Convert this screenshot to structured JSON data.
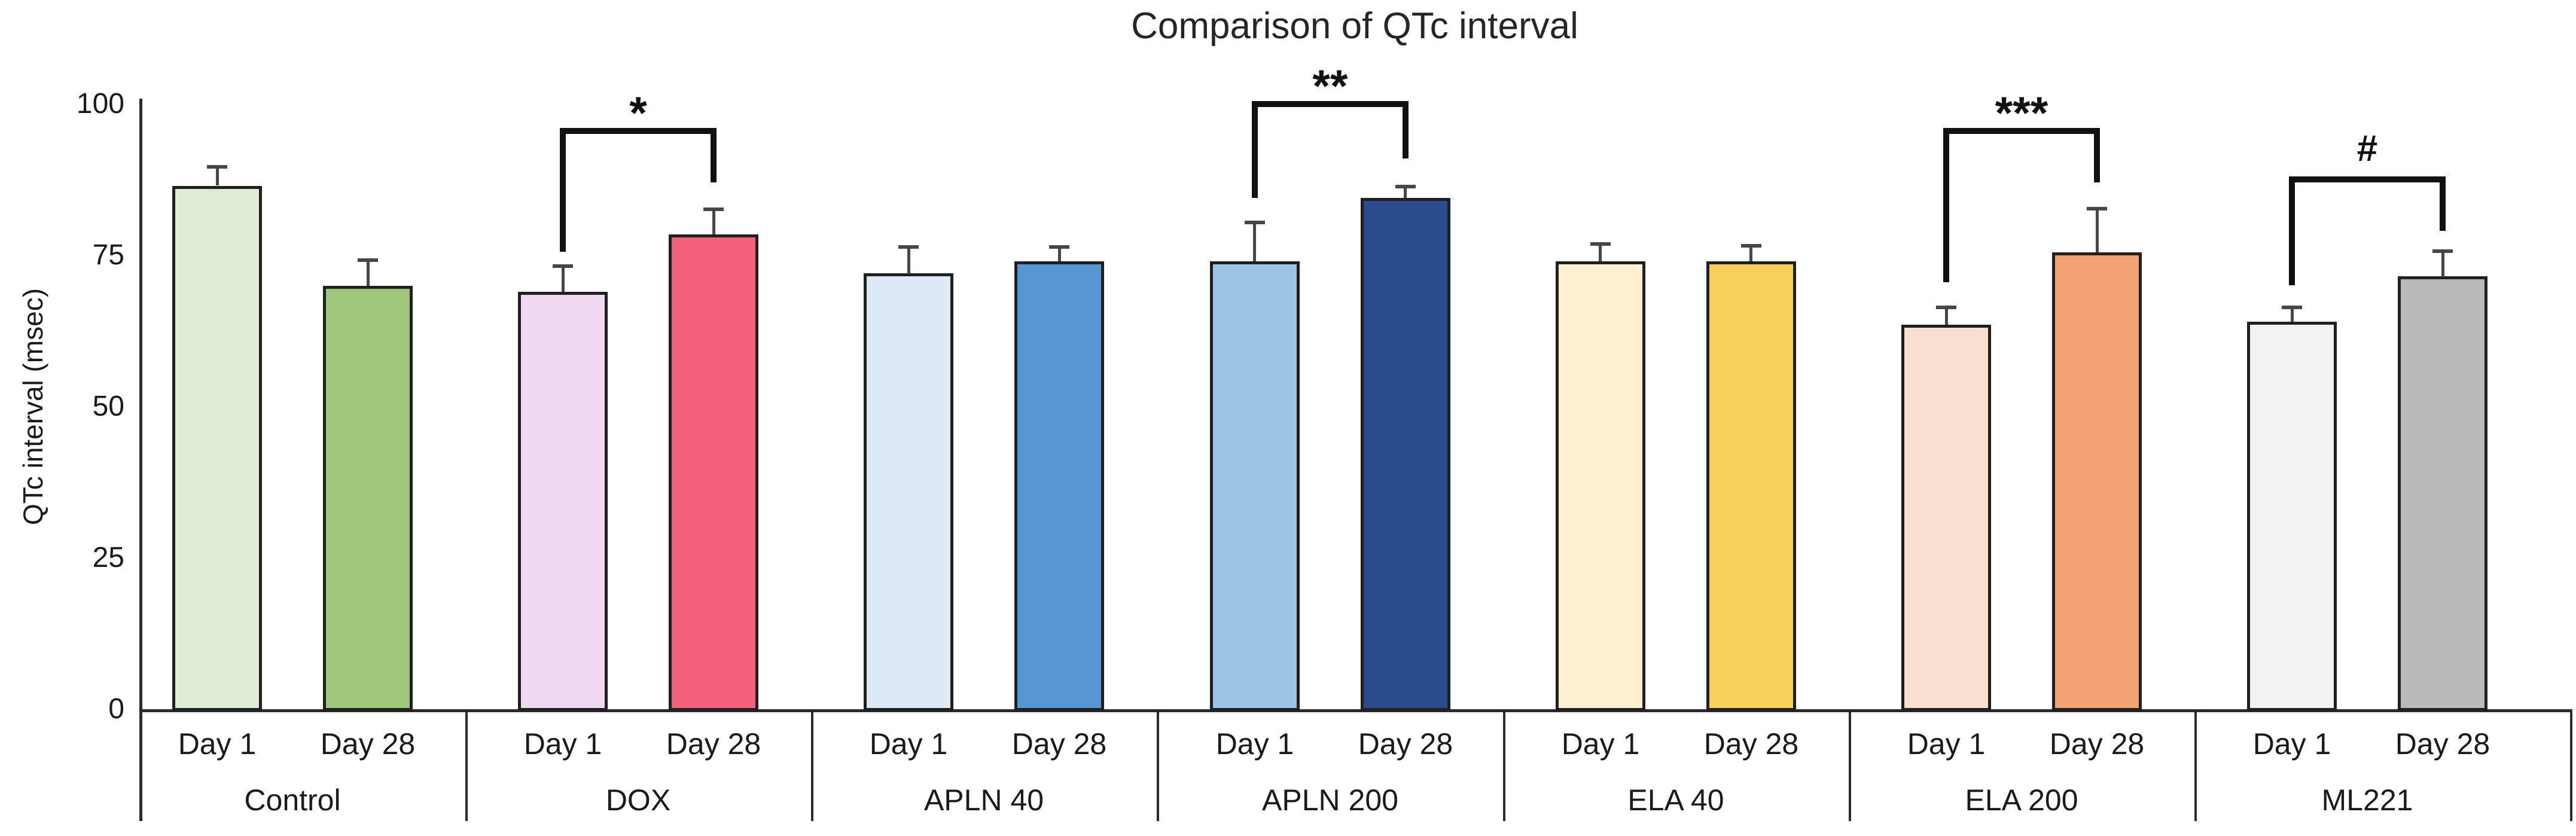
{
  "title": "Comparison of QTc interval",
  "chart_data": {
    "type": "bar",
    "title": "Comparison of QTc interval",
    "xlabel": "",
    "ylabel": "QTc interval (msec)",
    "ylim": [
      0,
      100
    ],
    "yticks": [
      0,
      25,
      50,
      75,
      100
    ],
    "grid": false,
    "legend_position": "none",
    "categories": [
      "Day 1",
      "Day 28"
    ],
    "background_color": "#ffffff",
    "bar_border_color": "#202020",
    "axis_color": "#2b2b2b",
    "error_bar_color": "#474747",
    "annotation_color": "#111111",
    "groups": [
      {
        "name": "Control",
        "day1": {
          "value": 86.5,
          "error": 3.2,
          "color": "#dfecd5"
        },
        "day28": {
          "value": 70.0,
          "error": 4.3,
          "color": "#9fc87d"
        }
      },
      {
        "name": "DOX",
        "day1": {
          "value": 69.0,
          "error": 4.3,
          "color": "#efd9f0"
        },
        "day28": {
          "value": 78.5,
          "error": 4.2,
          "color": "#f2607a"
        }
      },
      {
        "name": "APLN 40",
        "day1": {
          "value": 72.0,
          "error": 4.5,
          "color": "#dde9f5"
        },
        "day28": {
          "value": 74.0,
          "error": 2.5,
          "color": "#5697d3"
        }
      },
      {
        "name": "APLN 200",
        "day1": {
          "value": 74.0,
          "error": 6.5,
          "color": "#9cc4e6"
        },
        "day28": {
          "value": 84.5,
          "error": 2.0,
          "color": "#2a4b8d"
        }
      },
      {
        "name": "ELA 40",
        "day1": {
          "value": 74.0,
          "error": 3.0,
          "color": "#fdf0d0"
        },
        "day28": {
          "value": 74.0,
          "error": 2.7,
          "color": "#fad05c"
        }
      },
      {
        "name": "ELA 200",
        "day1": {
          "value": 63.5,
          "error": 3.0,
          "color": "#f9dfce"
        },
        "day28": {
          "value": 75.5,
          "error": 7.3,
          "color": "#f1a173"
        }
      },
      {
        "name": "ML221",
        "day1": {
          "value": 64.0,
          "error": 2.5,
          "color": "#f2f2f2"
        },
        "day28": {
          "value": 71.5,
          "error": 4.3,
          "color": "#bababa"
        }
      }
    ],
    "significance_annotations": [
      {
        "group": "DOX",
        "group_index": 1,
        "symbol": "*",
        "compares": [
          "Day 1",
          "Day 28"
        ],
        "bracket_top": 96.0,
        "left_leg_end": 75.5,
        "right_leg_end": 87.0
      },
      {
        "group": "APLN 200",
        "group_index": 3,
        "symbol": "**",
        "compares": [
          "Day 1",
          "Day 28"
        ],
        "bracket_top": 100.5,
        "left_leg_end": 84.5,
        "right_leg_end": 91.0
      },
      {
        "group": "ELA 200",
        "group_index": 5,
        "symbol": "***",
        "compares": [
          "Day 1",
          "Day 28"
        ],
        "bracket_top": 96.0,
        "left_leg_end": 70.5,
        "right_leg_end": 87.0
      },
      {
        "group": "ML221",
        "group_index": 6,
        "symbol": "#",
        "compares": [
          "Day 1",
          "Day 28"
        ],
        "bracket_top": 88.0,
        "left_leg_end": 70.0,
        "right_leg_end": 79.0
      }
    ]
  }
}
